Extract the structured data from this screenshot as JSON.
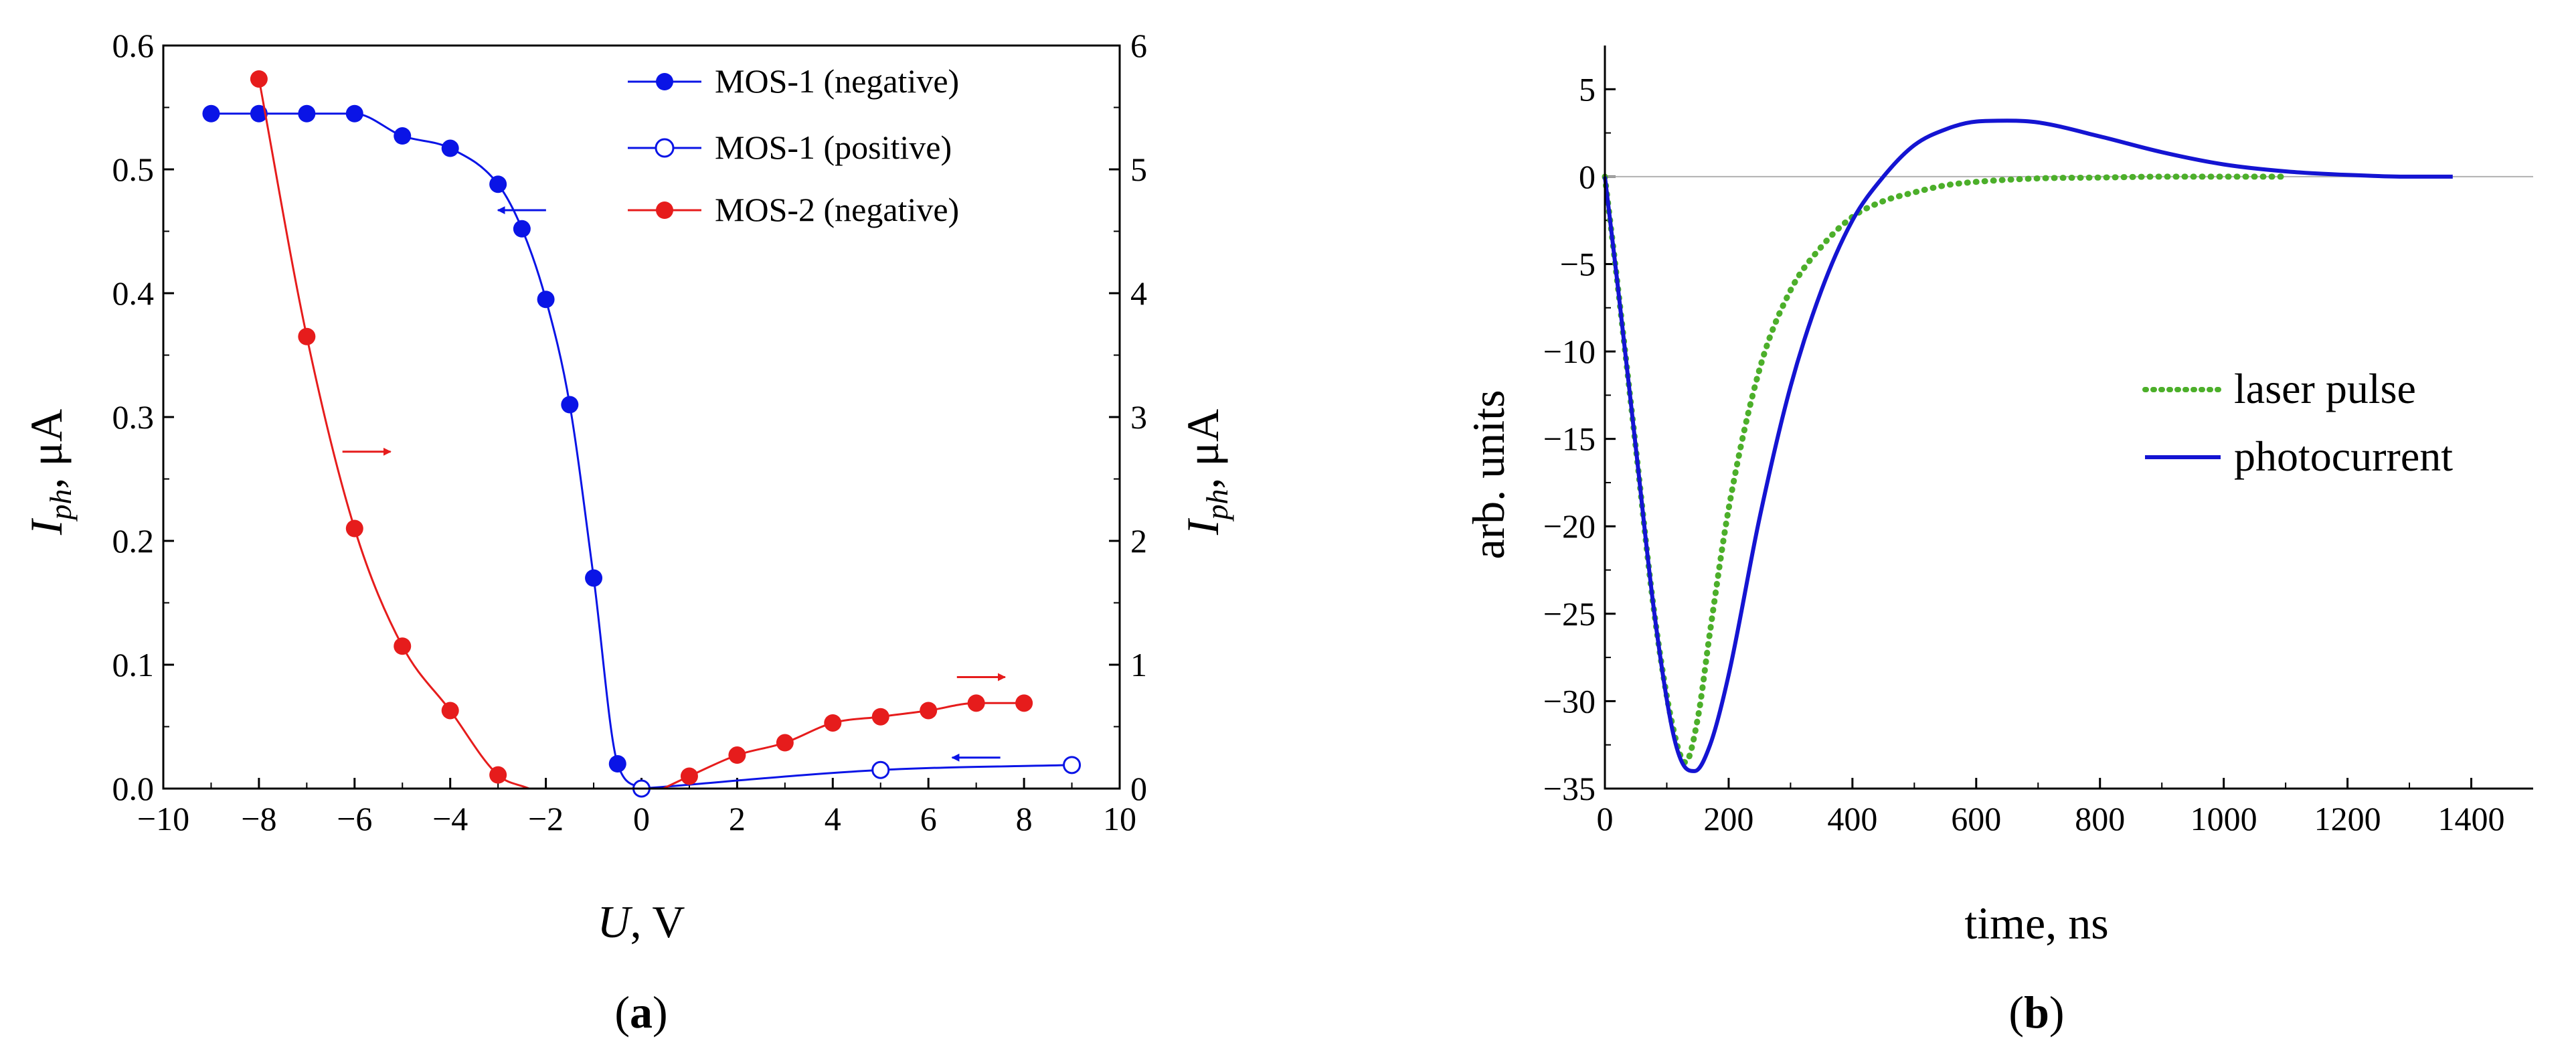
{
  "chart_data": [
    {
      "type": "line",
      "caption": [
        "(",
        "a",
        ")"
      ],
      "xlabel": [
        "U",
        ", V"
      ],
      "ylabel_left": [
        "I",
        "ph",
        ", μA"
      ],
      "ylabel_right": [
        "I",
        "ph",
        ", μA"
      ],
      "xlim": [
        -10,
        10
      ],
      "ylim_left": [
        0,
        0.6
      ],
      "ylim_right": [
        0,
        6
      ],
      "x_ticks": [
        -10,
        -8,
        -6,
        -4,
        -2,
        0,
        2,
        4,
        6,
        8,
        10
      ],
      "x_tick_labels": [
        "−10",
        "−8",
        "−6",
        "−4",
        "−2",
        "0",
        "2",
        "4",
        "6",
        "8",
        "10"
      ],
      "y_left_ticks": [
        0,
        0.1,
        0.2,
        0.3,
        0.4,
        0.5,
        0.6
      ],
      "y_left_tick_labels": [
        "0.0",
        "0.1",
        "0.2",
        "0.3",
        "0.4",
        "0.5",
        "0.6"
      ],
      "y_right_ticks": [
        0,
        1,
        2,
        3,
        4,
        5,
        6
      ],
      "y_right_tick_labels": [
        "0",
        "1",
        "2",
        "3",
        "4",
        "5",
        "6"
      ],
      "legend_position": "top-right",
      "series": [
        {
          "name": "MOS-1 (negative)",
          "axis": "left",
          "color": "#0a14e6",
          "marker": "filled",
          "x": [
            -9,
            -8,
            -7,
            -6,
            -5,
            -4,
            -3,
            -2.5,
            -2,
            -1.5,
            -1,
            -0.5,
            0
          ],
          "y": [
            0.545,
            0.545,
            0.545,
            0.545,
            0.527,
            0.517,
            0.488,
            0.452,
            0.395,
            0.31,
            0.17,
            0.02,
            0.0
          ]
        },
        {
          "name": "MOS-1 (positive)",
          "axis": "left",
          "color": "#0a14e6",
          "marker": "open",
          "x": [
            0,
            5,
            9
          ],
          "y": [
            0.0,
            0.015,
            0.019
          ]
        },
        {
          "name": "MOS-2 (negative)",
          "axis": "right",
          "color": "#e61c1c",
          "marker": "filled",
          "x": [
            -8,
            -7,
            -6,
            -5,
            -4,
            -3,
            1,
            2,
            3,
            4,
            5,
            6,
            7,
            8
          ],
          "y": [
            5.73,
            3.65,
            2.1,
            1.15,
            0.63,
            0.11,
            0.1,
            0.27,
            0.37,
            0.53,
            0.58,
            0.63,
            0.69,
            0.69
          ]
        }
      ],
      "annotations": [
        {
          "type": "arrow",
          "direction": "left",
          "target_axis": "left",
          "color": "#0a14e6",
          "x": -2.5,
          "y": 0.467
        },
        {
          "type": "arrow",
          "direction": "right",
          "target_axis": "right",
          "color": "#e61c1c",
          "x": -5.75,
          "y": 2.72
        },
        {
          "type": "arrow",
          "direction": "right",
          "target_axis": "right",
          "color": "#e61c1c",
          "x": 7.1,
          "y": 0.9
        },
        {
          "type": "arrow",
          "direction": "left",
          "target_axis": "left",
          "color": "#0a14e6",
          "x": 7.0,
          "y": 0.025
        }
      ]
    },
    {
      "type": "line",
      "caption": [
        "(",
        "b",
        ")"
      ],
      "xlabel": "time, ns",
      "ylabel": "arb. units",
      "xlim": [
        0,
        1500
      ],
      "ylim": [
        -35,
        7.5
      ],
      "x_ticks": [
        0,
        200,
        400,
        600,
        800,
        1000,
        1200,
        1400
      ],
      "x_tick_labels": [
        "0",
        "200",
        "400",
        "600",
        "800",
        "1000",
        "1200",
        "1400"
      ],
      "y_ticks": [
        -35,
        -30,
        -25,
        -20,
        -15,
        -10,
        -5,
        0,
        5
      ],
      "y_tick_labels": [
        "−35",
        "−30",
        "−25",
        "−20",
        "−15",
        "−10",
        "−5",
        "0",
        "5"
      ],
      "legend_position": "center-right",
      "series": [
        {
          "name": "laser pulse",
          "style": "dotted",
          "color": "#4caf2a",
          "x": [
            0,
            20,
            50,
            80,
            110,
            130,
            150,
            170,
            200,
            250,
            300,
            350,
            400,
            450,
            500,
            550,
            600,
            700,
            800,
            900,
            1000,
            1100
          ],
          "y": [
            0,
            -6,
            -15.5,
            -25,
            -31.5,
            -33.5,
            -31,
            -26,
            -19,
            -11,
            -6.5,
            -4,
            -2.3,
            -1.4,
            -0.9,
            -0.5,
            -0.3,
            -0.1,
            -0.05,
            0,
            0,
            0
          ]
        },
        {
          "name": "photocurrent",
          "style": "solid",
          "color": "#1414d2",
          "x": [
            0,
            20,
            50,
            80,
            110,
            130,
            145,
            170,
            200,
            250,
            300,
            350,
            400,
            450,
            500,
            550,
            600,
            650,
            700,
            800,
            900,
            1000,
            1100,
            1200,
            1300,
            1370
          ],
          "y": [
            0,
            -6,
            -15.5,
            -25,
            -31.8,
            -33.8,
            -34,
            -32.5,
            -28.5,
            -19.5,
            -12,
            -6.5,
            -2.5,
            0,
            1.8,
            2.7,
            3.15,
            3.2,
            3.1,
            2.3,
            1.4,
            0.7,
            0.3,
            0.1,
            0,
            0
          ]
        }
      ]
    }
  ]
}
